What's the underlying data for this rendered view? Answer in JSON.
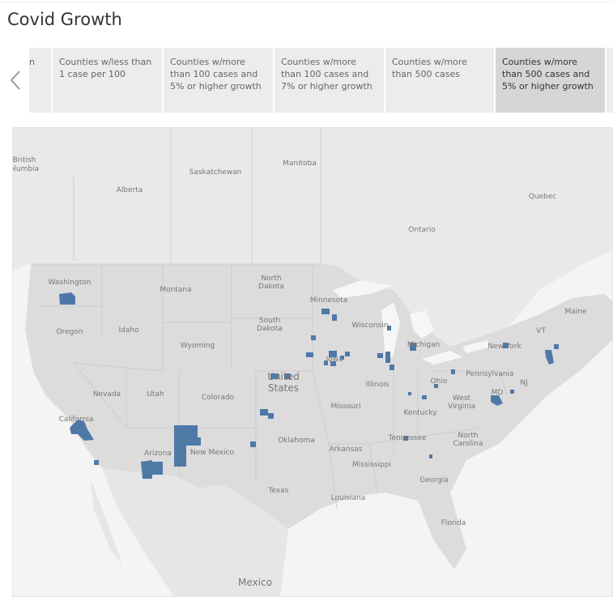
{
  "header": {
    "title": "Covid Growth"
  },
  "story": {
    "tabs": [
      "n",
      "Counties w/less than 1 case per 100",
      "Counties w/more than 100 cases and 5% or higher growth",
      "Counties w/more than 100 cases and 7% or higher growth",
      "Counties w/more than 500 cases",
      "Counties w/more than 500 cases and 5% or higher growth"
    ]
  },
  "map": {
    "labels": [
      "British",
      "olumbia",
      "Alberta",
      "Saskatchewan",
      "Manitoba",
      "Ontario",
      "Quebec",
      "Washington",
      "Montana",
      "North Dakota",
      "South Dakota",
      "Minnesota",
      "Wisconsin",
      "Michigan",
      "Maine",
      "VT",
      "New York",
      "Oregon",
      "Idaho",
      "Wyoming",
      "Iowa",
      "Pennsylvania",
      "NJ",
      "Nevada",
      "Utah",
      "Colorado",
      "United States",
      "Illinois",
      "Ohio",
      "MD",
      "Missouri",
      "West Virginia",
      "Kentucky",
      "California",
      "Arizona",
      "New Mexico",
      "Oklahoma",
      "Tennessee",
      "North Carolina",
      "Arkansas",
      "Mississippi",
      "Georgia",
      "Texas",
      "Louisiana",
      "Florida",
      "Mexico"
    ]
  }
}
